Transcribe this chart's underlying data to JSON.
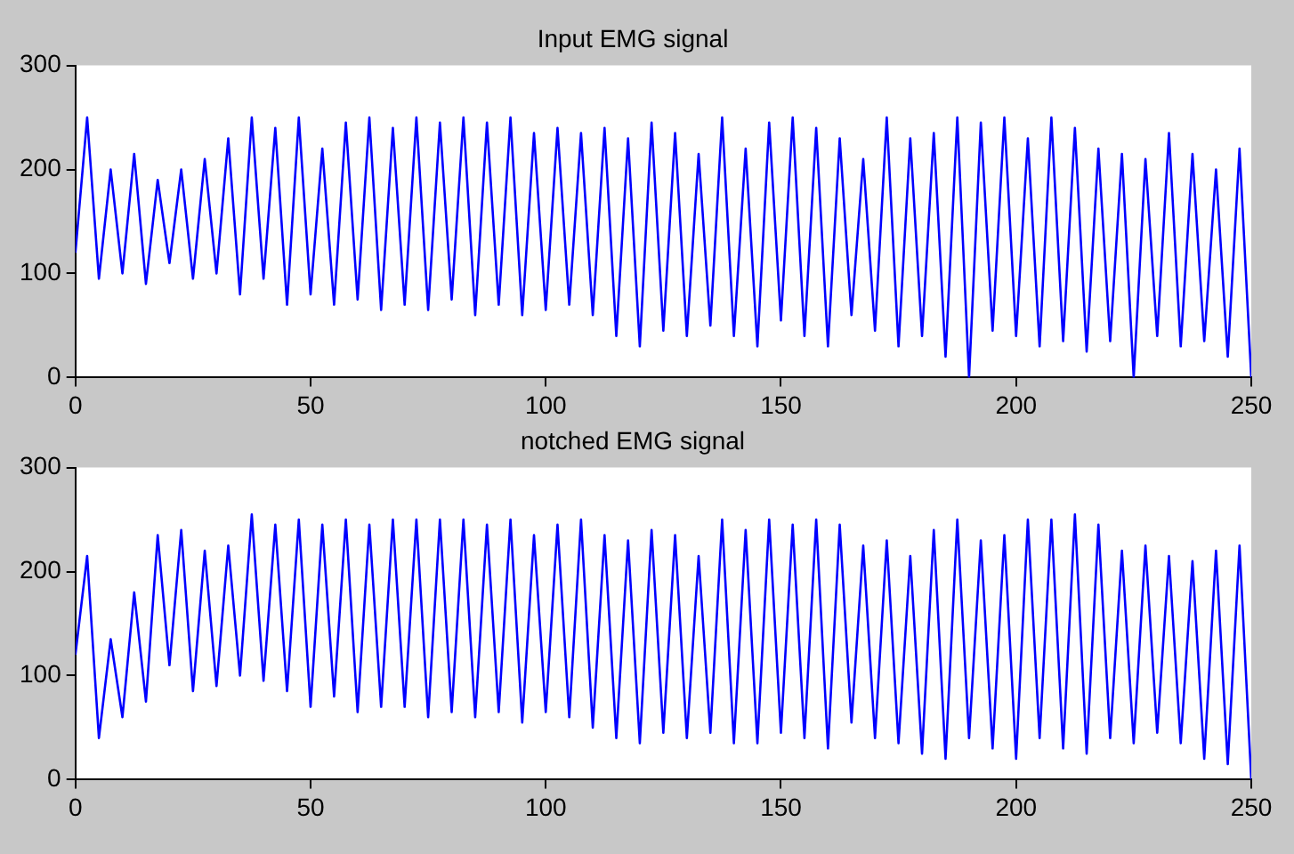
{
  "chart_data": [
    {
      "type": "line",
      "title": "Input EMG signal",
      "xlim": [
        0,
        250
      ],
      "ylim": [
        0,
        300
      ],
      "xticks": [
        0,
        50,
        100,
        150,
        200,
        250
      ],
      "yticks": [
        0,
        100,
        200,
        300
      ],
      "grid": false,
      "legend": false,
      "marker": "none",
      "line_style": "solid",
      "series": [
        {
          "color": "#0000ff",
          "x": [
            0,
            2.5,
            5,
            7.5,
            10,
            12.5,
            15,
            17.5,
            20,
            22.5,
            25,
            27.5,
            30,
            32.5,
            35,
            37.5,
            40,
            42.5,
            45,
            47.5,
            50,
            52.5,
            55,
            57.5,
            60,
            62.5,
            65,
            67.5,
            70,
            72.5,
            75,
            77.5,
            80,
            82.5,
            85,
            87.5,
            90,
            92.5,
            95,
            97.5,
            100,
            102.5,
            105,
            107.5,
            110,
            112.5,
            115,
            117.5,
            120,
            122.5,
            125,
            127.5,
            130,
            132.5,
            135,
            137.5,
            140,
            142.5,
            145,
            147.5,
            150,
            152.5,
            155,
            157.5,
            160,
            162.5,
            165,
            167.5,
            170,
            172.5,
            175,
            177.5,
            180,
            182.5,
            185,
            187.5,
            190,
            192.5,
            195,
            197.5,
            200,
            202.5,
            205,
            207.5,
            210,
            212.5,
            215,
            217.5,
            220,
            222.5,
            225,
            227.5,
            230,
            232.5,
            235,
            237.5,
            240,
            242.5,
            245,
            247.5,
            250
          ],
          "values": [
            120,
            250,
            95,
            200,
            100,
            215,
            90,
            190,
            110,
            200,
            95,
            210,
            100,
            230,
            80,
            250,
            95,
            240,
            70,
            250,
            80,
            220,
            70,
            245,
            75,
            250,
            65,
            240,
            70,
            250,
            65,
            245,
            75,
            250,
            60,
            245,
            70,
            250,
            60,
            235,
            65,
            240,
            70,
            235,
            60,
            240,
            40,
            230,
            30,
            245,
            45,
            235,
            40,
            215,
            50,
            250,
            40,
            220,
            30,
            245,
            55,
            250,
            40,
            240,
            30,
            230,
            60,
            210,
            45,
            250,
            30,
            230,
            40,
            235,
            20,
            250,
            0,
            245,
            45,
            250,
            40,
            230,
            30,
            250,
            35,
            240,
            25,
            220,
            35,
            215,
            0,
            210,
            40,
            235,
            30,
            215,
            35,
            200,
            20,
            220,
            0
          ]
        }
      ]
    },
    {
      "type": "line",
      "title": "notched EMG signal",
      "xlim": [
        0,
        250
      ],
      "ylim": [
        0,
        300
      ],
      "xticks": [
        0,
        50,
        100,
        150,
        200,
        250
      ],
      "yticks": [
        0,
        100,
        200,
        300
      ],
      "grid": false,
      "legend": false,
      "marker": "none",
      "line_style": "solid",
      "series": [
        {
          "color": "#0000ff",
          "x": [
            0,
            2.5,
            5,
            7.5,
            10,
            12.5,
            15,
            17.5,
            20,
            22.5,
            25,
            27.5,
            30,
            32.5,
            35,
            37.5,
            40,
            42.5,
            45,
            47.5,
            50,
            52.5,
            55,
            57.5,
            60,
            62.5,
            65,
            67.5,
            70,
            72.5,
            75,
            77.5,
            80,
            82.5,
            85,
            87.5,
            90,
            92.5,
            95,
            97.5,
            100,
            102.5,
            105,
            107.5,
            110,
            112.5,
            115,
            117.5,
            120,
            122.5,
            125,
            127.5,
            130,
            132.5,
            135,
            137.5,
            140,
            142.5,
            145,
            147.5,
            150,
            152.5,
            155,
            157.5,
            160,
            162.5,
            165,
            167.5,
            170,
            172.5,
            175,
            177.5,
            180,
            182.5,
            185,
            187.5,
            190,
            192.5,
            195,
            197.5,
            200,
            202.5,
            205,
            207.5,
            210,
            212.5,
            215,
            217.5,
            220,
            222.5,
            225,
            227.5,
            230,
            232.5,
            235,
            237.5,
            240,
            242.5,
            245,
            247.5,
            250
          ],
          "values": [
            120,
            215,
            40,
            135,
            60,
            180,
            75,
            235,
            110,
            240,
            85,
            220,
            90,
            225,
            100,
            255,
            95,
            245,
            85,
            250,
            70,
            245,
            80,
            250,
            65,
            245,
            70,
            250,
            70,
            250,
            60,
            250,
            65,
            250,
            60,
            245,
            65,
            250,
            55,
            235,
            65,
            245,
            60,
            250,
            50,
            235,
            40,
            230,
            35,
            240,
            45,
            235,
            40,
            215,
            45,
            250,
            35,
            240,
            35,
            250,
            45,
            245,
            40,
            250,
            30,
            245,
            55,
            225,
            40,
            230,
            35,
            215,
            25,
            240,
            20,
            250,
            40,
            230,
            30,
            235,
            20,
            250,
            40,
            250,
            30,
            255,
            25,
            245,
            40,
            220,
            35,
            225,
            45,
            215,
            35,
            210,
            20,
            220,
            15,
            225,
            0
          ]
        }
      ]
    }
  ]
}
